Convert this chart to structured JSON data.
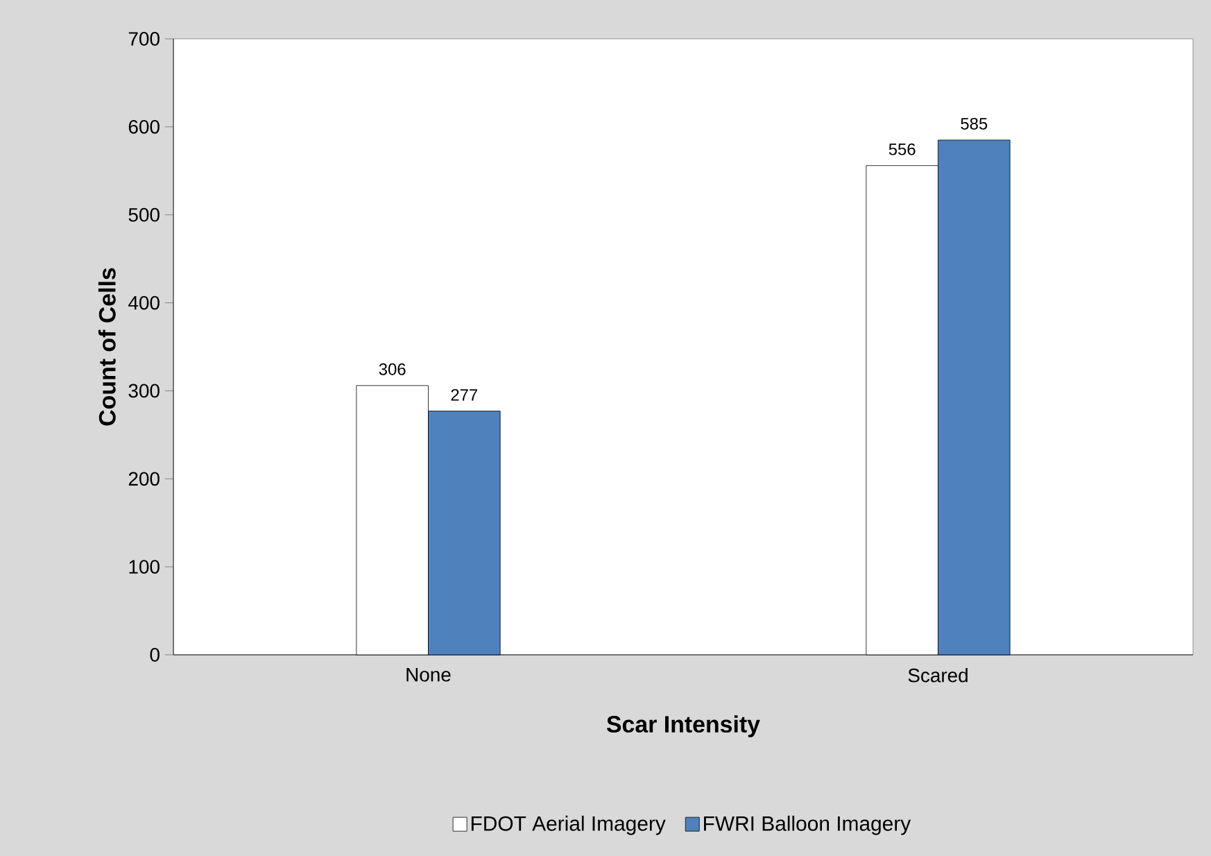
{
  "chart_data": {
    "type": "bar",
    "xlabel": "Scar Intensity",
    "ylabel": "Count of Cells",
    "categories": [
      "None",
      "Scared"
    ],
    "series": [
      {
        "name": "FDOT Aerial Imagery",
        "color": "#ffffff",
        "values": [
          306,
          556
        ]
      },
      {
        "name": "FWRI Balloon Imagery",
        "color": "#4f81bd",
        "values": [
          277,
          585
        ]
      }
    ],
    "ylim": [
      0,
      700
    ],
    "yticks": [
      0,
      100,
      200,
      300,
      400,
      500,
      600,
      700
    ],
    "data_labels": true,
    "grid": false,
    "legend": "bottom"
  }
}
